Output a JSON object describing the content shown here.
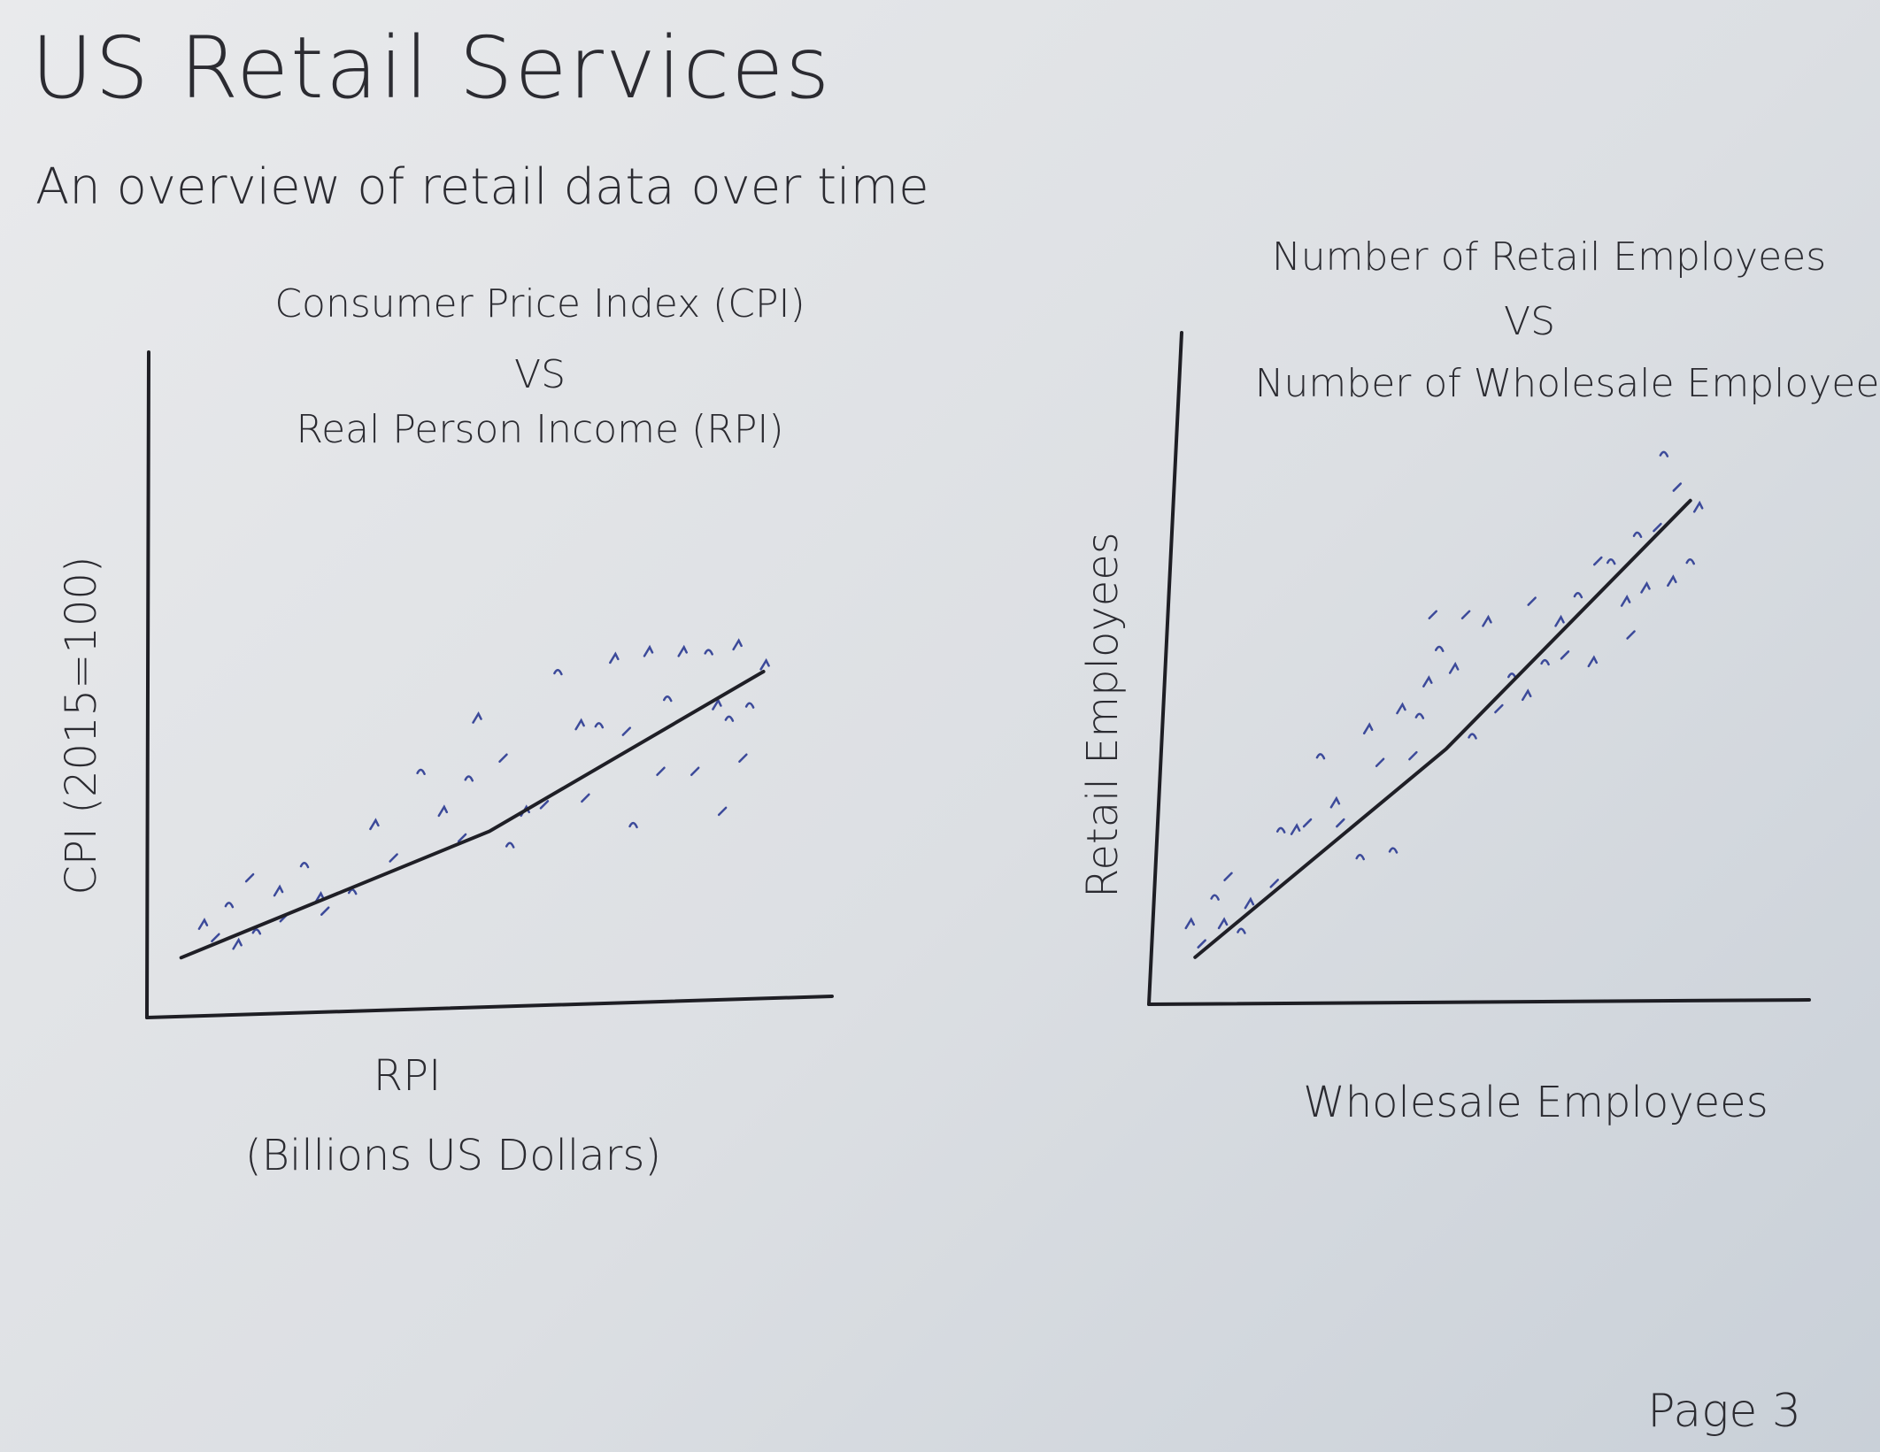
{
  "page": {
    "title": "US Retail Services",
    "subtitle": "An overview of retail data over time",
    "page_number": "Page 3"
  },
  "colors": {
    "ink": "#2b2b31",
    "points": "#3c4a9a",
    "paper": "#e3e5e8"
  },
  "chart_data": [
    {
      "type": "scatter",
      "title_lines": [
        "Consumer Price Index (CPI)",
        "VS",
        "Real Person Income (RPI)"
      ],
      "xlabel_lines": [
        "RPI",
        "(Billions US Dollars)"
      ],
      "ylabel": "CPI (2015=100)",
      "xlim": [
        0,
        100
      ],
      "ylim": [
        0,
        100
      ],
      "grid": false,
      "trendline": {
        "x": [
          5,
          50,
          90
        ],
        "y": [
          9,
          28,
          52
        ]
      },
      "points": [
        {
          "x": 8,
          "y": 14
        },
        {
          "x": 10,
          "y": 12
        },
        {
          "x": 12,
          "y": 17
        },
        {
          "x": 13,
          "y": 11
        },
        {
          "x": 15,
          "y": 21
        },
        {
          "x": 16,
          "y": 13
        },
        {
          "x": 19,
          "y": 19
        },
        {
          "x": 20,
          "y": 15
        },
        {
          "x": 23,
          "y": 23
        },
        {
          "x": 25,
          "y": 18
        },
        {
          "x": 26,
          "y": 16
        },
        {
          "x": 30,
          "y": 19
        },
        {
          "x": 33,
          "y": 29
        },
        {
          "x": 36,
          "y": 24
        },
        {
          "x": 40,
          "y": 37
        },
        {
          "x": 43,
          "y": 31
        },
        {
          "x": 46,
          "y": 27
        },
        {
          "x": 47,
          "y": 36
        },
        {
          "x": 48,
          "y": 45
        },
        {
          "x": 52,
          "y": 39
        },
        {
          "x": 53,
          "y": 26
        },
        {
          "x": 55,
          "y": 31
        },
        {
          "x": 58,
          "y": 32
        },
        {
          "x": 60,
          "y": 52
        },
        {
          "x": 63,
          "y": 44
        },
        {
          "x": 64,
          "y": 33
        },
        {
          "x": 66,
          "y": 44
        },
        {
          "x": 68,
          "y": 54
        },
        {
          "x": 70,
          "y": 43
        },
        {
          "x": 71,
          "y": 29
        },
        {
          "x": 73,
          "y": 55
        },
        {
          "x": 75,
          "y": 37
        },
        {
          "x": 76,
          "y": 48
        },
        {
          "x": 78,
          "y": 55
        },
        {
          "x": 80,
          "y": 37
        },
        {
          "x": 82,
          "y": 55
        },
        {
          "x": 83,
          "y": 47
        },
        {
          "x": 84,
          "y": 31
        },
        {
          "x": 85,
          "y": 45
        },
        {
          "x": 86,
          "y": 56
        },
        {
          "x": 87,
          "y": 39
        },
        {
          "x": 88,
          "y": 47
        },
        {
          "x": 90,
          "y": 53
        }
      ]
    },
    {
      "type": "scatter",
      "title_lines": [
        "Number of Retail Employees",
        "VS",
        "Number of Wholesale Employees"
      ],
      "xlabel_lines": [
        "Wholesale Employees"
      ],
      "ylabel": "Retail Employees",
      "xlim": [
        0,
        100
      ],
      "ylim": [
        0,
        100
      ],
      "grid": false,
      "trendline": {
        "x": [
          7,
          45,
          82
        ],
        "y": [
          7,
          38,
          75
        ]
      },
      "points": [
        {
          "x": 6,
          "y": 12
        },
        {
          "x": 8,
          "y": 9
        },
        {
          "x": 10,
          "y": 16
        },
        {
          "x": 11,
          "y": 12
        },
        {
          "x": 12,
          "y": 19
        },
        {
          "x": 14,
          "y": 11
        },
        {
          "x": 15,
          "y": 15
        },
        {
          "x": 19,
          "y": 18
        },
        {
          "x": 20,
          "y": 26
        },
        {
          "x": 22,
          "y": 26
        },
        {
          "x": 24,
          "y": 27
        },
        {
          "x": 26,
          "y": 37
        },
        {
          "x": 28,
          "y": 30
        },
        {
          "x": 29,
          "y": 27
        },
        {
          "x": 32,
          "y": 22
        },
        {
          "x": 33,
          "y": 41
        },
        {
          "x": 35,
          "y": 36
        },
        {
          "x": 37,
          "y": 23
        },
        {
          "x": 38,
          "y": 44
        },
        {
          "x": 40,
          "y": 37
        },
        {
          "x": 41,
          "y": 43
        },
        {
          "x": 42,
          "y": 48
        },
        {
          "x": 43,
          "y": 58
        },
        {
          "x": 44,
          "y": 53
        },
        {
          "x": 46,
          "y": 50
        },
        {
          "x": 48,
          "y": 58
        },
        {
          "x": 49,
          "y": 40
        },
        {
          "x": 51,
          "y": 57
        },
        {
          "x": 53,
          "y": 44
        },
        {
          "x": 55,
          "y": 49
        },
        {
          "x": 57,
          "y": 46
        },
        {
          "x": 58,
          "y": 60
        },
        {
          "x": 60,
          "y": 51
        },
        {
          "x": 62,
          "y": 57
        },
        {
          "x": 63,
          "y": 52
        },
        {
          "x": 65,
          "y": 61
        },
        {
          "x": 67,
          "y": 51
        },
        {
          "x": 68,
          "y": 66
        },
        {
          "x": 70,
          "y": 66
        },
        {
          "x": 72,
          "y": 60
        },
        {
          "x": 73,
          "y": 55
        },
        {
          "x": 74,
          "y": 70
        },
        {
          "x": 75,
          "y": 62
        },
        {
          "x": 77,
          "y": 71
        },
        {
          "x": 78,
          "y": 82
        },
        {
          "x": 79,
          "y": 63
        },
        {
          "x": 80,
          "y": 77
        },
        {
          "x": 82,
          "y": 66
        },
        {
          "x": 83,
          "y": 74
        }
      ]
    }
  ]
}
